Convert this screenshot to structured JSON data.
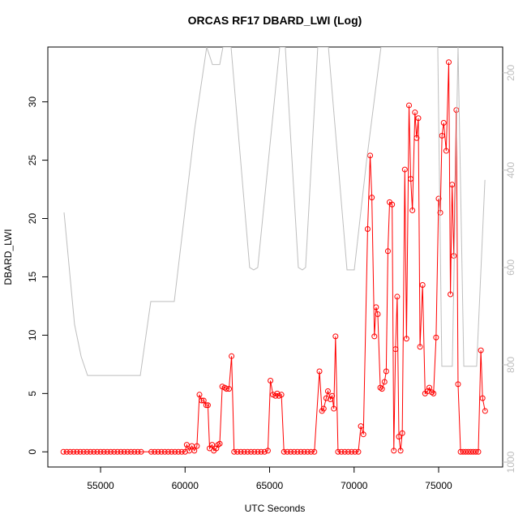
{
  "chart_data": {
    "type": "line",
    "title": "ORCAS RF17 DBARD_LWI (Log)",
    "xlabel": "UTC Seconds",
    "ylabel": "DBARD_LWI",
    "xlim": [
      51880,
      78790
    ],
    "ylim": [
      -1.3,
      34.7
    ],
    "y2lim": [
      1010,
      147
    ],
    "xticks": [
      55000,
      60000,
      65000,
      70000,
      75000
    ],
    "yticks": [
      0,
      5,
      10,
      15,
      20,
      25,
      30
    ],
    "y2ticks": [
      200,
      400,
      600,
      800,
      1000
    ],
    "series": [
      {
        "color": "#ff0000",
        "marker": "circle",
        "x": [
          52800,
          53000,
          53200,
          53400,
          53600,
          53800,
          54000,
          54200,
          54400,
          54600,
          54800,
          55000,
          55200,
          55400,
          55600,
          55800,
          56000,
          56200,
          56400,
          56600,
          56800,
          57000,
          57200,
          57400,
          58000,
          58200,
          58400,
          58600,
          58800,
          59000,
          59200,
          59400,
          59600,
          59800,
          60000,
          60100,
          60250,
          60400,
          60550,
          60700,
          60850,
          60980,
          61100,
          61250,
          61350,
          61450,
          61600,
          61700,
          61850,
          61950,
          62050,
          62200,
          62350,
          62450,
          62600,
          62750,
          62900,
          63100,
          63300,
          63500,
          63700,
          63900,
          64100,
          64300,
          64500,
          64700,
          64900,
          65050,
          65200,
          65350,
          65450,
          65550,
          65700,
          65850,
          66050,
          66250,
          66450,
          66650,
          66850,
          67050,
          67250,
          67450,
          67650,
          67950,
          68100,
          68200,
          68350,
          68450,
          68600,
          68700,
          68800,
          68900,
          69050,
          69250,
          69450,
          69650,
          69850,
          70050,
          70250,
          70400,
          70550,
          70800,
          70950,
          71050,
          71200,
          71300,
          71400,
          71550,
          71650,
          71800,
          71900,
          72000,
          72100,
          72250,
          72350,
          72450,
          72550,
          72650,
          72750,
          72850,
          73000,
          73100,
          73250,
          73350,
          73450,
          73600,
          73700,
          73800,
          73900,
          74050,
          74200,
          74350,
          74450,
          74600,
          74700,
          74850,
          75000,
          75100,
          75200,
          75300,
          75450,
          75600,
          75700,
          75800,
          75900,
          76050,
          76150,
          76300,
          76450,
          76600,
          76750,
          76900,
          77050,
          77200,
          77350,
          77500,
          77600,
          77750
        ],
        "values": [
          0,
          0,
          0,
          0,
          0,
          0,
          0,
          0,
          0,
          0,
          0,
          0,
          0,
          0,
          0,
          0,
          0,
          0,
          0,
          0,
          0,
          0,
          0,
          0,
          0,
          0,
          0,
          0,
          0,
          0,
          0,
          0,
          0,
          0,
          0,
          0.6,
          0.1,
          0.5,
          0.1,
          0.5,
          4.9,
          4.4,
          4.4,
          4.0,
          4.0,
          0.3,
          0.6,
          0.1,
          0.3,
          0.6,
          0.7,
          5.6,
          5.5,
          5.4,
          5.4,
          8.2,
          0,
          0,
          0,
          0,
          0,
          0,
          0,
          0,
          0,
          0,
          0.1,
          6.1,
          4.9,
          4.8,
          5.0,
          4.8,
          4.9,
          0,
          0,
          0,
          0,
          0,
          0,
          0,
          0,
          0,
          0,
          6.9,
          3.5,
          3.7,
          4.6,
          5.2,
          4.5,
          4.8,
          3.7,
          9.9,
          0,
          0,
          0,
          0,
          0,
          0,
          0,
          2.2,
          1.5,
          19.1,
          25.4,
          21.8,
          9.9,
          12.4,
          11.8,
          5.5,
          5.4,
          6.0,
          6.9,
          17.2,
          21.4,
          21.2,
          0.1,
          8.8,
          13.3,
          1.3,
          0.1,
          1.6,
          24.2,
          9.7,
          29.7,
          23.4,
          20.7,
          29.1,
          26.9,
          28.6,
          9.0,
          14.3,
          5.0,
          5.2,
          5.5,
          5.1,
          5.0,
          9.8,
          21.7,
          20.5,
          27.1,
          28.2,
          25.8,
          33.4,
          13.5,
          22.9,
          16.8,
          29.3,
          5.8,
          0,
          0,
          0,
          0,
          0,
          0,
          0,
          0,
          8.7,
          4.6,
          3.5
        ]
      },
      {
        "color": "#bebebe",
        "axis": "y2",
        "x": [
          52840,
          53460,
          53850,
          54230,
          57350,
          57970,
          59360,
          60560,
          61280,
          61620,
          62050,
          62240,
          62720,
          63820,
          64060,
          64300,
          65600,
          65930,
          66700,
          66940,
          67130,
          67850,
          68480,
          69580,
          70010,
          70730,
          71590,
          74950,
          75190,
          75810,
          76150,
          76490,
          77250,
          77740
        ],
        "values": [
          487,
          717,
          783,
          822,
          822,
          670,
          670,
          317,
          147,
          183,
          183,
          147,
          147,
          600,
          605,
          600,
          147,
          147,
          600,
          605,
          600,
          147,
          147,
          605,
          605,
          383,
          147,
          147,
          803,
          803,
          147,
          803,
          803,
          420
        ]
      }
    ]
  }
}
